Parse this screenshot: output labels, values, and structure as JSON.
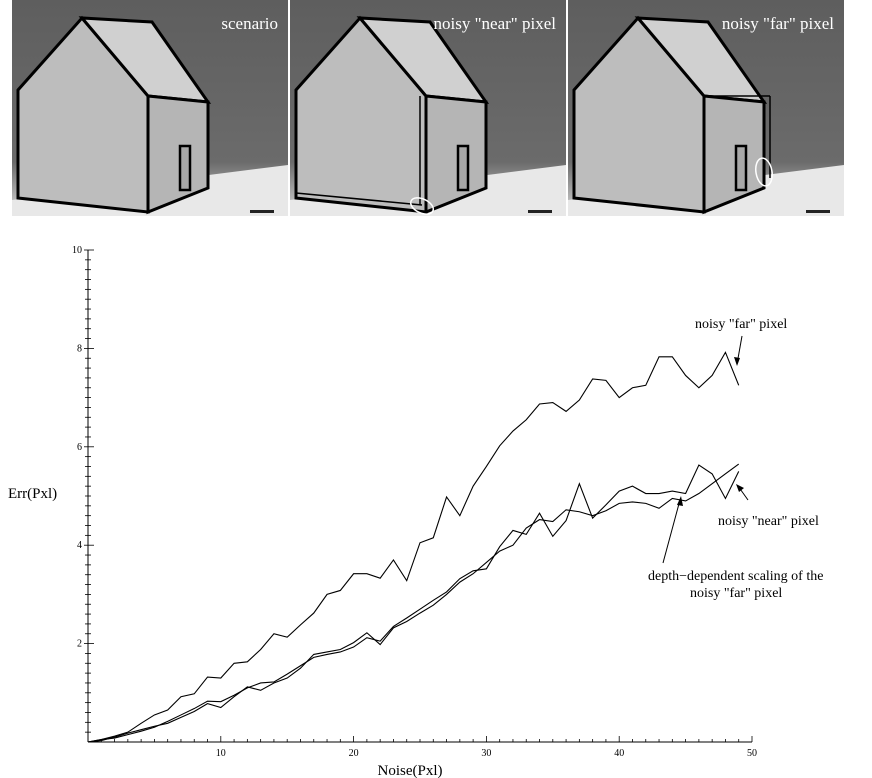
{
  "panels": [
    {
      "label": "scenario"
    },
    {
      "label": "noisy \"near\" pixel"
    },
    {
      "label": "noisy \"far\" pixel"
    }
  ],
  "chart_data": {
    "type": "line",
    "xlabel": "Noise(Pxl)",
    "ylabel": "Err(Pxl)",
    "xlim": [
      0,
      50
    ],
    "ylim": [
      0,
      10
    ],
    "xticks": [
      10,
      20,
      30,
      40,
      50
    ],
    "yticks": [
      2,
      4,
      6,
      8,
      10
    ],
    "grid": false,
    "x": [
      1,
      2,
      3,
      4,
      5,
      6,
      7,
      8,
      9,
      10,
      11,
      12,
      13,
      14,
      15,
      16,
      17,
      18,
      19,
      20,
      21,
      22,
      23,
      24,
      25,
      26,
      27,
      28,
      29,
      30,
      31,
      32,
      33,
      34,
      35,
      36,
      37,
      38,
      39,
      40,
      41,
      42,
      43,
      44,
      45,
      46,
      47,
      48,
      49
    ],
    "series": [
      {
        "name": "noisy \"far\" pixel",
        "values": [
          0.05,
          0.12,
          0.2,
          0.38,
          0.55,
          0.65,
          0.92,
          0.98,
          1.32,
          1.3,
          1.6,
          1.63,
          1.88,
          2.2,
          2.13,
          2.38,
          2.62,
          3.0,
          3.08,
          3.42,
          3.42,
          3.33,
          3.7,
          3.28,
          4.05,
          4.15,
          4.98,
          4.6,
          5.2,
          5.6,
          6.02,
          6.32,
          6.55,
          6.87,
          6.9,
          6.72,
          6.95,
          7.38,
          7.35,
          7.0,
          7.2,
          7.25,
          7.83,
          7.83,
          7.45,
          7.2,
          7.45,
          7.92,
          7.25
        ]
      },
      {
        "name": "noisy \"near\" pixel",
        "values": [
          0.05,
          0.08,
          0.15,
          0.22,
          0.3,
          0.42,
          0.55,
          0.68,
          0.83,
          0.82,
          0.95,
          1.1,
          1.2,
          1.22,
          1.38,
          1.55,
          1.72,
          1.78,
          1.83,
          1.93,
          2.12,
          2.05,
          2.35,
          2.52,
          2.7,
          2.88,
          3.05,
          3.32,
          3.48,
          3.52,
          3.97,
          4.3,
          4.22,
          4.65,
          4.18,
          4.5,
          5.25,
          4.55,
          4.82,
          5.1,
          5.2,
          5.05,
          5.05,
          5.1,
          5.05,
          5.63,
          5.45,
          4.95,
          5.5
        ]
      },
      {
        "name": "depth−dependent scaling of the noisy \"far\" pixel",
        "values": [
          0.03,
          0.1,
          0.18,
          0.25,
          0.32,
          0.38,
          0.5,
          0.62,
          0.78,
          0.7,
          0.92,
          1.12,
          1.05,
          1.2,
          1.3,
          1.5,
          1.78,
          1.83,
          1.88,
          2.02,
          2.22,
          1.98,
          2.32,
          2.45,
          2.62,
          2.78,
          3.0,
          3.25,
          3.42,
          3.65,
          3.88,
          4.0,
          4.35,
          4.52,
          4.48,
          4.72,
          4.68,
          4.6,
          4.7,
          4.85,
          4.88,
          4.85,
          4.75,
          4.95,
          4.9,
          5.05,
          5.25,
          5.45,
          5.65
        ]
      }
    ],
    "annotations": [
      {
        "text": "noisy \"far\" pixel"
      },
      {
        "text": "noisy \"near\" pixel"
      },
      {
        "text": "depth−dependent scaling of the",
        "text2": "noisy \"far\" pixel"
      }
    ]
  }
}
